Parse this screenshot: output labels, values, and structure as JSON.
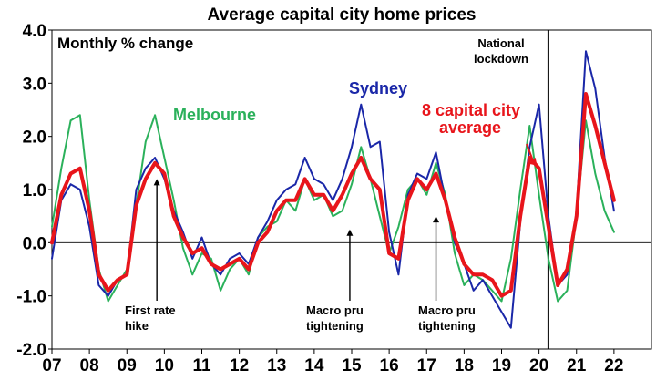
{
  "chart_data": {
    "type": "line",
    "title": "Average capital city home prices",
    "subtitle": "Monthly % change",
    "ylim": [
      -2.0,
      4.0
    ],
    "yticks": [
      "4.0",
      "3.0",
      "2.0",
      "1.0",
      "0.0",
      "-1.0",
      "-2.0"
    ],
    "ytick_values": [
      4,
      3,
      2,
      1,
      0,
      -1,
      -2
    ],
    "xlim": [
      2007,
      2023
    ],
    "xticks": [
      "07",
      "08",
      "09",
      "10",
      "11",
      "12",
      "13",
      "14",
      "15",
      "16",
      "17",
      "18",
      "19",
      "20",
      "21",
      "22"
    ],
    "xtick_values": [
      2007,
      2008,
      2009,
      2010,
      2011,
      2012,
      2013,
      2014,
      2015,
      2016,
      2017,
      2018,
      2019,
      2020,
      2021,
      2022
    ],
    "series": [
      {
        "name": "Melbourne",
        "color": "#2BB15B",
        "x": [
          2007.0,
          2007.25,
          2007.5,
          2007.75,
          2008.0,
          2008.25,
          2008.5,
          2008.75,
          2009.0,
          2009.25,
          2009.5,
          2009.75,
          2010.0,
          2010.25,
          2010.5,
          2010.75,
          2011.0,
          2011.25,
          2011.5,
          2011.75,
          2012.0,
          2012.25,
          2012.5,
          2012.75,
          2013.0,
          2013.25,
          2013.5,
          2013.75,
          2014.0,
          2014.25,
          2014.5,
          2014.75,
          2015.0,
          2015.25,
          2015.5,
          2015.75,
          2016.0,
          2016.25,
          2016.5,
          2016.75,
          2017.0,
          2017.25,
          2017.5,
          2017.75,
          2018.0,
          2018.25,
          2018.5,
          2018.75,
          2019.0,
          2019.25,
          2019.5,
          2019.75,
          2020.0,
          2020.25,
          2020.5,
          2020.75,
          2021.0,
          2021.25,
          2021.5,
          2021.75,
          2022.0
        ],
        "values": [
          0.3,
          1.4,
          2.3,
          2.4,
          0.8,
          -0.5,
          -1.1,
          -0.8,
          -0.5,
          0.7,
          1.9,
          2.4,
          1.6,
          0.8,
          -0.1,
          -0.6,
          -0.2,
          -0.3,
          -0.9,
          -0.5,
          -0.3,
          -0.6,
          0.1,
          0.3,
          0.4,
          0.8,
          0.6,
          1.2,
          0.8,
          0.9,
          0.5,
          0.6,
          1.1,
          1.8,
          1.2,
          0.5,
          -0.2,
          0.3,
          1.0,
          1.2,
          0.9,
          1.5,
          0.9,
          -0.2,
          -0.8,
          -0.6,
          -0.7,
          -0.9,
          -1.1,
          -0.3,
          1.0,
          2.2,
          0.9,
          -0.3,
          -1.1,
          -0.9,
          0.5,
          2.3,
          1.3,
          0.6,
          0.2
        ]
      },
      {
        "name": "Sydney",
        "color": "#1A27A8",
        "x": [
          2007.0,
          2007.25,
          2007.5,
          2007.75,
          2008.0,
          2008.25,
          2008.5,
          2008.75,
          2009.0,
          2009.25,
          2009.5,
          2009.75,
          2010.0,
          2010.25,
          2010.5,
          2010.75,
          2011.0,
          2011.25,
          2011.5,
          2011.75,
          2012.0,
          2012.25,
          2012.5,
          2012.75,
          2013.0,
          2013.25,
          2013.5,
          2013.75,
          2014.0,
          2014.25,
          2014.5,
          2014.75,
          2015.0,
          2015.25,
          2015.5,
          2015.75,
          2016.0,
          2016.25,
          2016.5,
          2016.75,
          2017.0,
          2017.25,
          2017.5,
          2017.75,
          2018.0,
          2018.25,
          2018.5,
          2018.75,
          2019.0,
          2019.25,
          2019.5,
          2019.75,
          2020.0,
          2020.25,
          2020.5,
          2020.75,
          2021.0,
          2021.25,
          2021.5,
          2021.75,
          2022.0
        ],
        "values": [
          -0.3,
          0.8,
          1.1,
          1.0,
          0.3,
          -0.8,
          -1.0,
          -0.7,
          -0.6,
          1.0,
          1.4,
          1.6,
          1.2,
          0.6,
          0.2,
          -0.3,
          0.1,
          -0.4,
          -0.6,
          -0.3,
          -0.2,
          -0.4,
          0.1,
          0.4,
          0.8,
          1.0,
          1.1,
          1.6,
          1.2,
          1.1,
          0.8,
          1.2,
          1.8,
          2.6,
          1.8,
          1.9,
          0.2,
          -0.6,
          0.9,
          1.3,
          1.2,
          1.7,
          0.8,
          0.0,
          -0.4,
          -0.9,
          -0.7,
          -1.0,
          -1.3,
          -1.6,
          0.4,
          1.8,
          2.6,
          0.5,
          -0.8,
          -0.6,
          0.6,
          3.6,
          2.9,
          1.6,
          0.6
        ]
      },
      {
        "name": "8 capital city average",
        "color": "#E8151B",
        "x": [
          2007.0,
          2007.25,
          2007.5,
          2007.75,
          2008.0,
          2008.25,
          2008.5,
          2008.75,
          2009.0,
          2009.25,
          2009.5,
          2009.75,
          2010.0,
          2010.25,
          2010.5,
          2010.75,
          2011.0,
          2011.25,
          2011.5,
          2011.75,
          2012.0,
          2012.25,
          2012.5,
          2012.75,
          2013.0,
          2013.25,
          2013.5,
          2013.75,
          2014.0,
          2014.25,
          2014.5,
          2014.75,
          2015.0,
          2015.25,
          2015.5,
          2015.75,
          2016.0,
          2016.25,
          2016.5,
          2016.75,
          2017.0,
          2017.25,
          2017.5,
          2017.75,
          2018.0,
          2018.25,
          2018.5,
          2018.75,
          2019.0,
          2019.25,
          2019.5,
          2019.75,
          2020.0,
          2020.25,
          2020.5,
          2020.75,
          2021.0,
          2021.25,
          2021.5,
          2021.75,
          2022.0
        ],
        "values": [
          0.0,
          0.9,
          1.3,
          1.4,
          0.6,
          -0.6,
          -0.9,
          -0.7,
          -0.6,
          0.7,
          1.2,
          1.5,
          1.3,
          0.5,
          0.1,
          -0.2,
          -0.1,
          -0.4,
          -0.5,
          -0.4,
          -0.3,
          -0.5,
          0.0,
          0.2,
          0.6,
          0.8,
          0.8,
          1.2,
          0.9,
          0.9,
          0.6,
          0.9,
          1.3,
          1.6,
          1.2,
          1.0,
          -0.2,
          -0.3,
          0.8,
          1.2,
          1.0,
          1.3,
          0.8,
          0.1,
          -0.4,
          -0.6,
          -0.6,
          -0.7,
          -1.0,
          -0.9,
          0.5,
          1.6,
          1.4,
          0.3,
          -0.8,
          -0.5,
          0.5,
          2.8,
          2.2,
          1.5,
          0.8
        ]
      }
    ],
    "annotations": {
      "melbourne_label": "Melbourne",
      "sydney_label": "Sydney",
      "average_label_line1": "8 capital city",
      "average_label_line2": "average",
      "lockdown_line1": "National",
      "lockdown_line2": "lockdown",
      "lockdown_x": 2020.25,
      "first_rate_hike_line1": "First rate",
      "first_rate_hike_line2": "hike",
      "first_rate_hike_x": 2009.8,
      "first_rate_hike_y": 1.2,
      "macro1_line1": "Macro pru",
      "macro1_line2": "tightening",
      "macro1_x": 2014.95,
      "macro1_y": 0.25,
      "macro2_line1": "Macro pru",
      "macro2_line2": "tightening",
      "macro2_x": 2017.25,
      "macro2_y": 0.5
    }
  }
}
